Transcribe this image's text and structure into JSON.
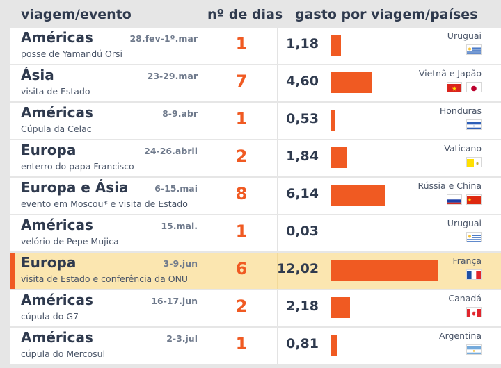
{
  "header": {
    "col_trip": "viagem/evento",
    "col_days": "nº de dias",
    "col_spend": "gasto por viagem/países"
  },
  "colors": {
    "accent": "#f05a22",
    "highlight_row": "#fbe6b0",
    "text_dark": "#2f3a4e"
  },
  "rows": [
    {
      "region": "Américas",
      "date": "28.fev-1º.mar",
      "event": "posse de Yamandú Orsi",
      "days": "1",
      "spend": "1,18",
      "countries": "Uruguai",
      "flags": [
        "uruguay-flag-icon"
      ],
      "highlight": false
    },
    {
      "region": "Ásia",
      "date": "23-29.mar",
      "event": "visita de Estado",
      "days": "7",
      "spend": "4,60",
      "countries": "Vietnã e Japão",
      "flags": [
        "vietnam-flag-icon",
        "japan-flag-icon"
      ],
      "highlight": false
    },
    {
      "region": "Américas",
      "date": "8-9.abr",
      "event": "Cúpula da Celac",
      "days": "1",
      "spend": "0,53",
      "countries": "Honduras",
      "flags": [
        "honduras-flag-icon"
      ],
      "highlight": false
    },
    {
      "region": "Europa",
      "date": "24-26.abril",
      "event": "enterro do papa Francisco",
      "days": "2",
      "spend": "1,84",
      "countries": "Vaticano",
      "flags": [
        "vatican-flag-icon"
      ],
      "highlight": false
    },
    {
      "region": "Europa e Ásia",
      "date": "6-15.mai",
      "event": "evento em Moscou* e visita de Estado",
      "days": "8",
      "spend": "6,14",
      "countries": "Rússia e China",
      "flags": [
        "russia-flag-icon",
        "china-flag-icon"
      ],
      "highlight": false
    },
    {
      "region": "Américas",
      "date": "15.mai.",
      "event": "velório de Pepe Mujica",
      "days": "1",
      "spend": "0,03",
      "countries": "Uruguai",
      "flags": [
        "uruguay-flag-icon"
      ],
      "highlight": false
    },
    {
      "region": "Europa",
      "date": "3-9.jun",
      "event": "visita de Estado e conferência da ONU",
      "days": "6",
      "spend": "12,02",
      "countries": "França",
      "flags": [
        "france-flag-icon"
      ],
      "highlight": true
    },
    {
      "region": "Américas",
      "date": "16-17.jun",
      "event": "cúpula do G7",
      "days": "2",
      "spend": "2,18",
      "countries": "Canadá",
      "flags": [
        "canada-flag-icon"
      ],
      "highlight": false
    },
    {
      "region": "Américas",
      "date": "2-3.jul",
      "event": "cúpula do Mercosul",
      "days": "1",
      "spend": "0,81",
      "countries": "Argentina",
      "flags": [
        "argentina-flag-icon"
      ],
      "highlight": false
    }
  ],
  "chart_data": {
    "type": "bar",
    "categories": [
      "Uruguai",
      "Vietnã e Japão",
      "Honduras",
      "Vaticano",
      "Rússia e China",
      "Uruguai",
      "França",
      "Canadá",
      "Argentina"
    ],
    "values": [
      1.18,
      4.6,
      0.53,
      1.84,
      6.14,
      0.03,
      12.02,
      2.18,
      0.81
    ],
    "title": "gasto por viagem/países",
    "xlabel": "",
    "ylabel": "",
    "xlim": [
      0,
      12.5
    ],
    "orientation": "horizontal",
    "grid": false
  }
}
